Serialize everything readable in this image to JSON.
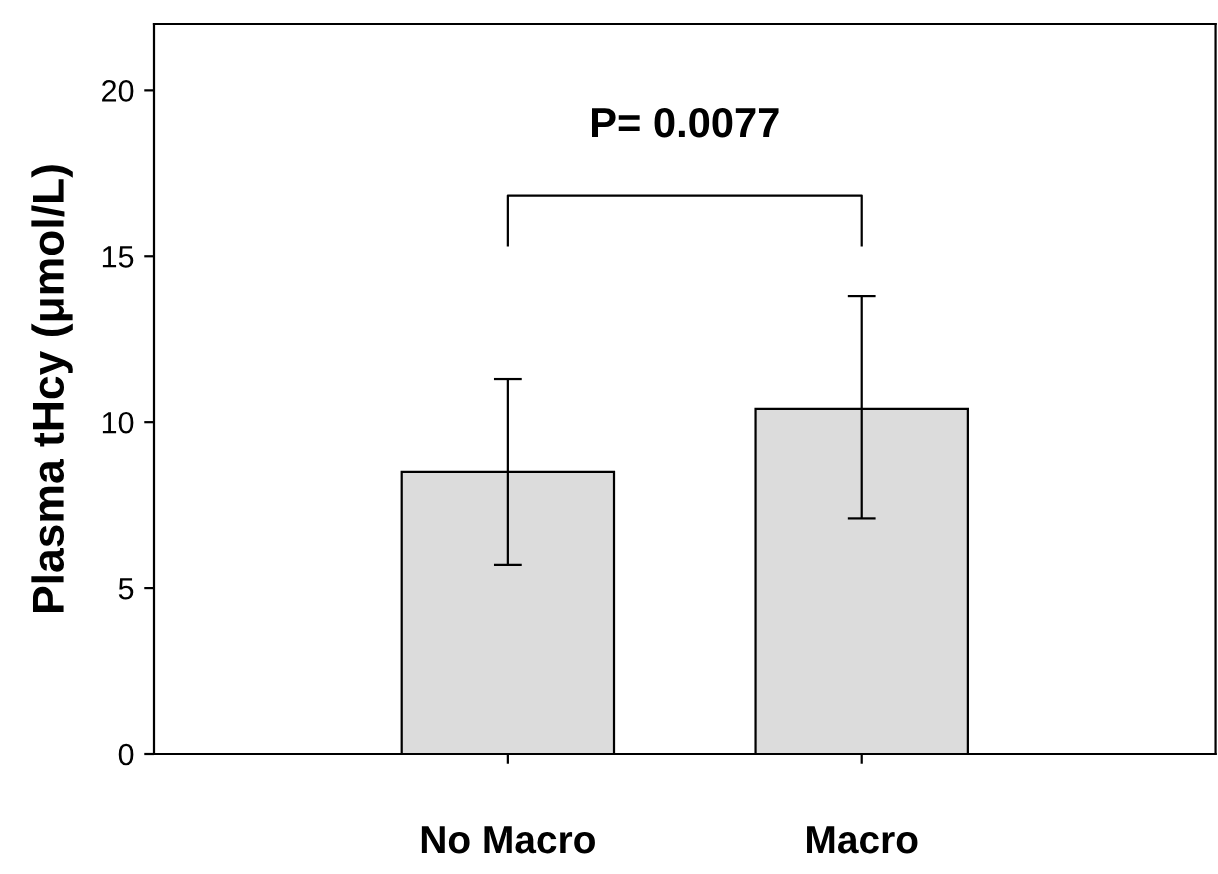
{
  "chart_data": {
    "type": "bar",
    "ylabel": "Plasma tHcy (μmol/L)",
    "categories": [
      "No Macro",
      "Macro"
    ],
    "values": [
      8.5,
      10.4
    ],
    "errors": [
      [
        5.7,
        11.3
      ],
      [
        7.1,
        13.8
      ]
    ],
    "color": "#dcdcdc",
    "ylim": [
      0,
      22
    ],
    "yticks": [
      0,
      5,
      10,
      15,
      20
    ],
    "grid": false,
    "legend": false,
    "annotations": [
      "P= 0.0077"
    ]
  }
}
